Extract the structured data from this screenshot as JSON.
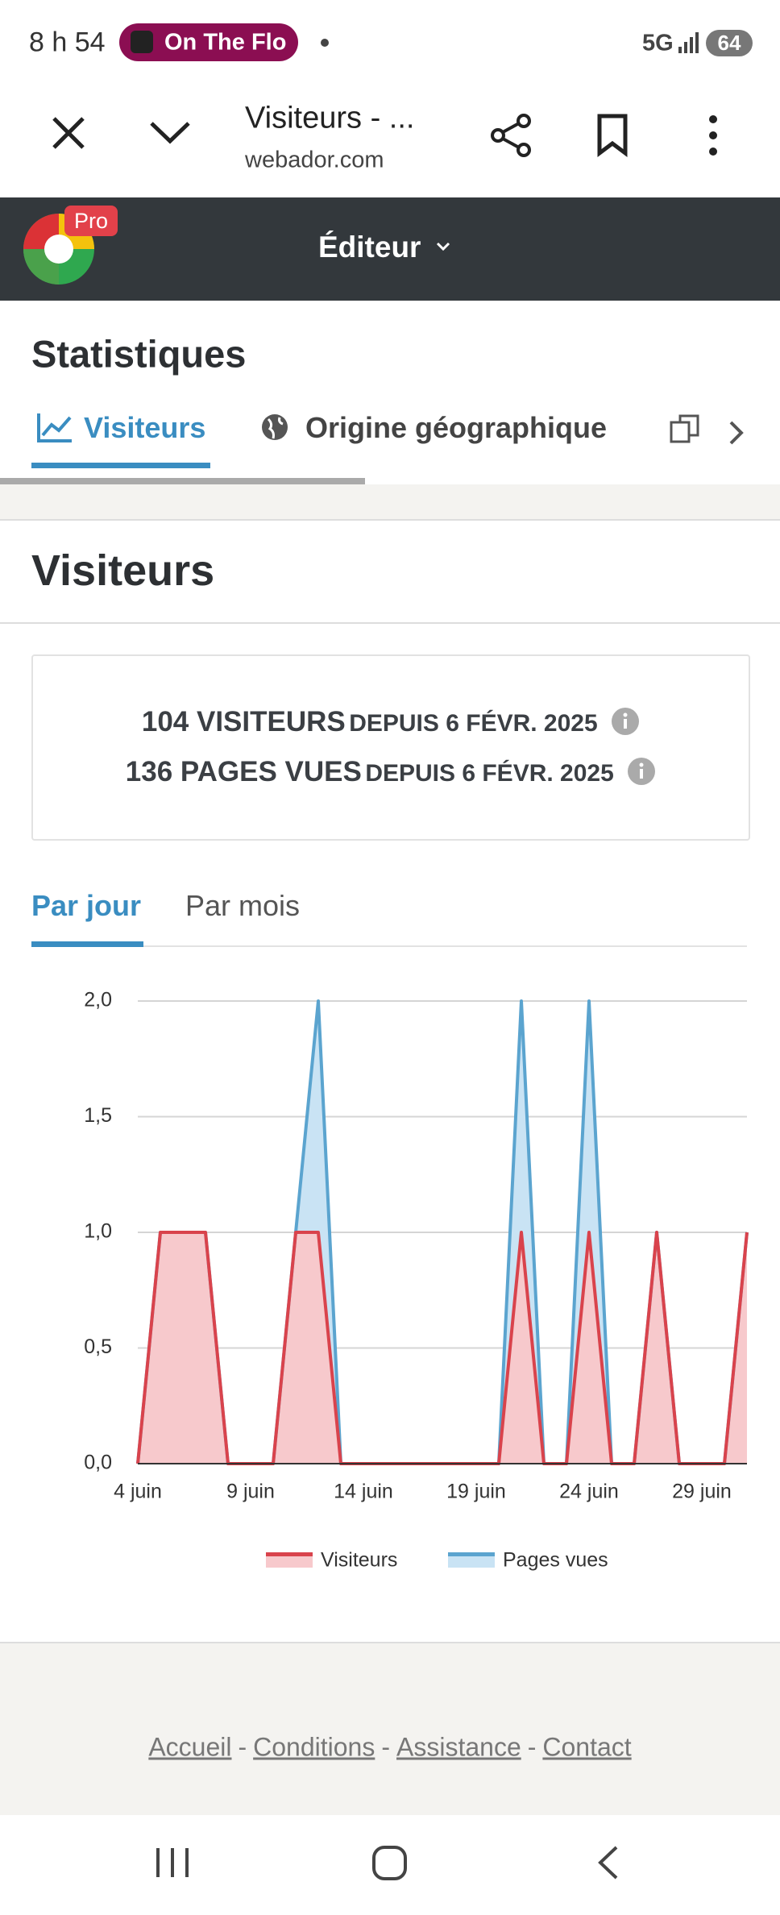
{
  "status_bar": {
    "time": "8 h 54",
    "media": "On The Flo",
    "network": "5G",
    "battery": "64"
  },
  "browser": {
    "title": "Visiteurs - ...",
    "url": "webador.com"
  },
  "header": {
    "badge": "Pro",
    "menu": "Éditeur"
  },
  "page_title": "Statistiques",
  "tabs": [
    "Visiteurs",
    "Origine géographique"
  ],
  "section_title": "Visiteurs",
  "summary": [
    {
      "count": "104 VISITEURS",
      "since": "DEPUIS 6 FÉVR. 2025"
    },
    {
      "count": "136 PAGES VUES",
      "since": "DEPUIS 6 FÉVR. 2025"
    }
  ],
  "period_tabs": [
    "Par jour",
    "Par mois"
  ],
  "chart_data": {
    "type": "line",
    "categories": [
      "4 juin",
      null,
      null,
      null,
      null,
      "9 juin",
      null,
      null,
      null,
      null,
      "14 juin",
      null,
      null,
      null,
      null,
      "19 juin",
      null,
      null,
      null,
      null,
      "24 juin",
      null,
      null,
      null,
      null,
      "29 juin",
      null,
      null
    ],
    "series": [
      {
        "name": "Visiteurs",
        "color": "#d9434c",
        "fill": "#f7c9cc",
        "values": [
          0,
          1,
          1,
          1,
          0,
          0,
          0,
          1,
          1,
          0,
          0,
          0,
          0,
          0,
          0,
          0,
          0,
          1,
          0,
          0,
          1,
          0,
          0,
          1,
          0,
          0,
          0,
          1
        ]
      },
      {
        "name": "Pages vues",
        "color": "#5ba4cf",
        "fill": "#c9e3f4",
        "values": [
          0,
          1,
          1,
          1,
          0,
          0,
          0,
          1,
          2,
          0,
          0,
          0,
          0,
          0,
          0,
          0,
          0,
          2,
          0,
          0,
          2,
          0,
          0,
          1,
          0,
          0,
          0,
          1
        ]
      }
    ],
    "ylim": [
      0,
      2
    ],
    "yticks": [
      {
        "value": 0,
        "label": "0,0"
      },
      {
        "value": 0.5,
        "label": "0,5"
      },
      {
        "value": 1,
        "label": "1,0"
      },
      {
        "value": 1.5,
        "label": "1,5"
      },
      {
        "value": 2,
        "label": "2,0"
      }
    ],
    "grid": true
  },
  "footer": {
    "links": [
      "Accueil",
      "Conditions",
      "Assistance",
      "Contact"
    ],
    "separator": "-"
  }
}
